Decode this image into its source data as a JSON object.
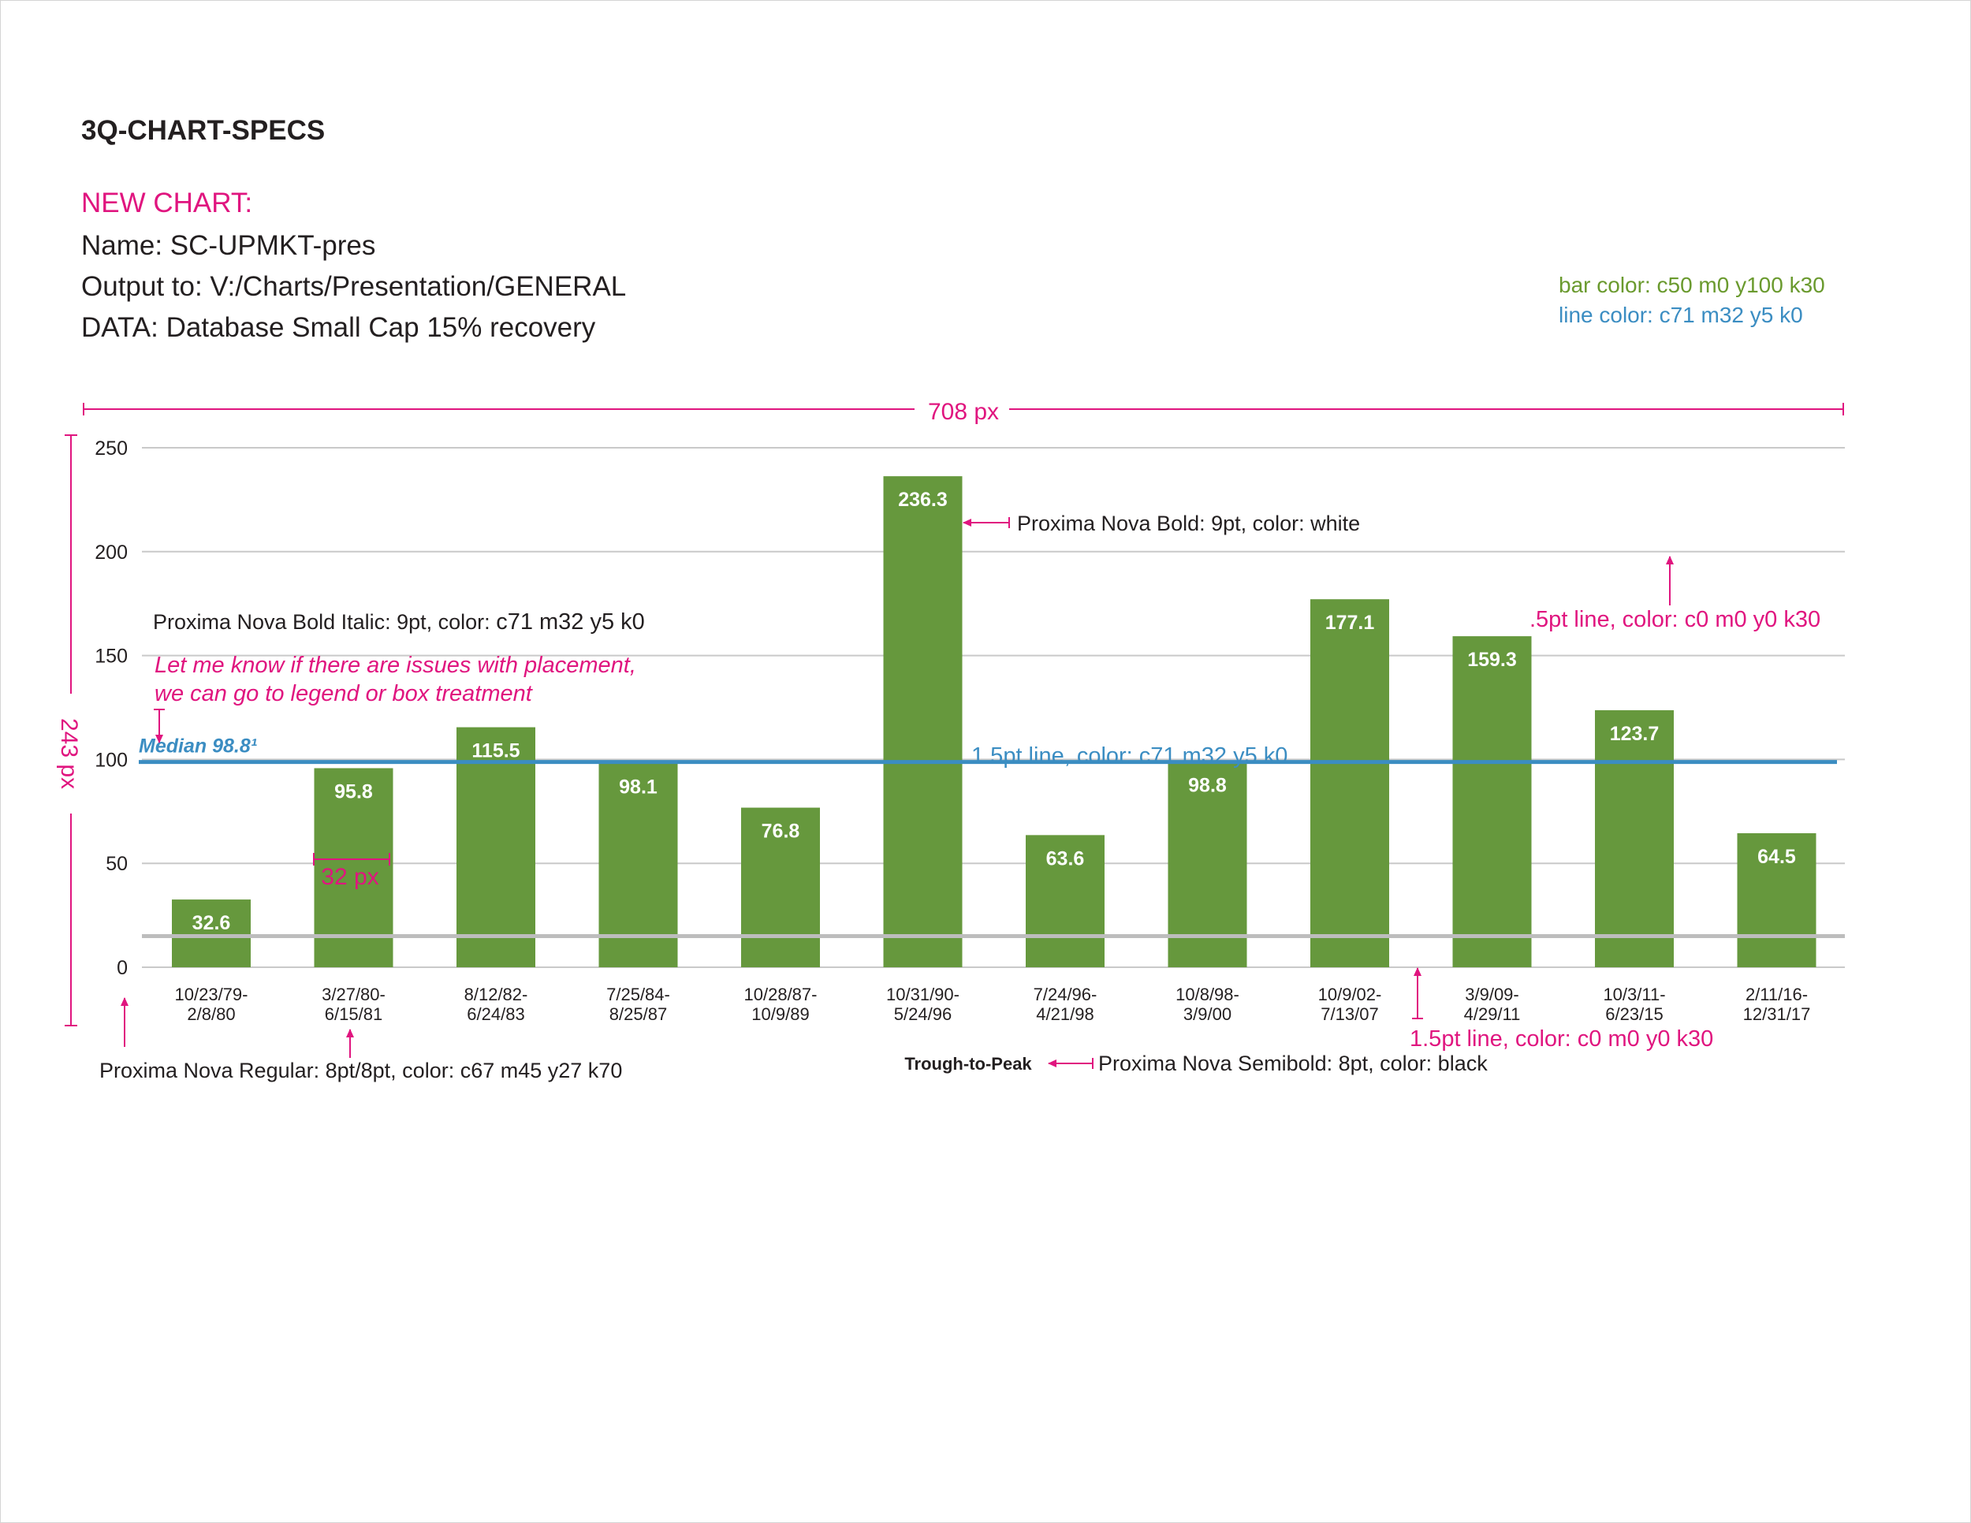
{
  "header": {
    "title": "3Q-CHART-SPECS",
    "new_chart": "NEW CHART:",
    "name_line": "Name: SC-UPMKT-pres",
    "output_line": "Output to: V:/Charts/Presentation/GENERAL",
    "data_line": "DATA: Database Small Cap 15% recovery"
  },
  "color_notes": {
    "bar": "bar color: c50 m0 y100 k30",
    "line": "line color: c71 m32 y5 k0"
  },
  "colors": {
    "bar": "#66983d",
    "median_line": "#3b8dc2",
    "annotation": "#e0157f",
    "grid": "#c9c9c9",
    "baseline": "#bdbdbd",
    "axis_text": "#231f20"
  },
  "chart_data": {
    "type": "bar",
    "categories": [
      "10/23/79-\n2/8/80",
      "3/27/80-\n6/15/81",
      "8/12/82-\n6/24/83",
      "7/25/84-\n8/25/87",
      "10/28/87-\n10/9/89",
      "10/31/90-\n5/24/96",
      "7/24/96-\n4/21/98",
      "10/8/98-\n3/9/00",
      "10/9/02-\n7/13/07",
      "3/9/09-\n4/29/11",
      "10/3/11-\n6/23/15",
      "2/11/16-\n12/31/17"
    ],
    "values": [
      32.6,
      95.8,
      115.5,
      98.1,
      76.8,
      236.3,
      63.6,
      98.8,
      177.1,
      159.3,
      123.7,
      64.5
    ],
    "value_labels": [
      "32.6",
      "95.8",
      "115.5",
      "98.1",
      "76.8",
      "236.3",
      "63.6",
      "98.8",
      "177.1",
      "159.3",
      "123.7",
      "64.5"
    ],
    "ylim": [
      0,
      250
    ],
    "yticks": [
      0,
      50,
      100,
      150,
      200,
      250
    ],
    "grid": true,
    "gray_reference_line": 15,
    "median": {
      "value": 98.8,
      "label": "Median 98.8¹"
    },
    "xlabel": "Trough-to-Peak"
  },
  "annotations": {
    "width": "708 px",
    "height": "243 px",
    "bar_width": "32 px",
    "label_font": "Proxima Nova Bold: 9pt, color: white",
    "median_font_prefix": "Proxima Nova Bold Italic: 9pt, color: ",
    "median_font_color": "c71 m32 y5 k0",
    "placement_note_1": "Let me know if there are issues with placement,",
    "placement_note_2": "we can go to legend or box treatment",
    "median_line_spec": "1.5pt line, color: c71 m32 y5 k0",
    "grid_spec": ".5pt line, color: c0 m0 y0 k30",
    "baseline_spec": "1.5pt line, color: c0 m0 y0 k30",
    "axis_font": "Proxima Nova Regular: 8pt/8pt, color: c67 m45 y27 k70",
    "xlabel_font": "Proxima Nova Semibold: 8pt, color: black"
  }
}
